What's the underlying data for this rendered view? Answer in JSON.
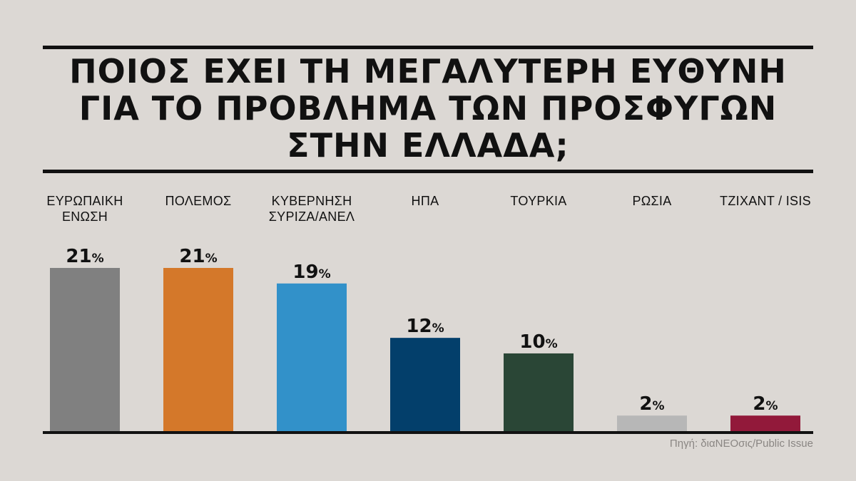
{
  "title": "ΠΟΙΟΣ ΕΧΕΙ ΤΗ ΜΕΓΑΛΥΤΕΡΗ ΕΥΘΥΝΗ\nΓΙΑ ΤΟ ΠΡΟΒΛΗΜΑ ΤΩΝ ΠΡΟΣΦΥΓΩΝ\nΣΤΗΝ ΕΛΛΑΔΑ;",
  "source": "Πηγή: διαΝΕΟσις/Public Issue",
  "chart_data": {
    "type": "bar",
    "title": "ΠΟΙΟΣ ΕΧΕΙ ΤΗ ΜΕΓΑΛΥΤΕΡΗ ΕΥΘΥΝΗ ΓΙΑ ΤΟ ΠΡΟΒΛΗΜΑ ΤΩΝ ΠΡΟΣΦΥΓΩΝ ΣΤΗΝ ΕΛΛΑΔΑ;",
    "xlabel": "",
    "ylabel": "",
    "unit": "%",
    "grid": false,
    "legend": "none",
    "ylim": [
      0,
      21
    ],
    "categories": [
      [
        "ΕΥΡΩΠΑΙΚΗ",
        "ΕΝΩΣΗ"
      ],
      [
        "ΠΟΛΕΜΟΣ"
      ],
      [
        "ΚΥΒΕΡΝΗΣΗ",
        "ΣΥΡΙΖΑ/ΑΝΕΛ"
      ],
      [
        "ΗΠΑ"
      ],
      [
        "ΤΟΥΡΚΙΑ"
      ],
      [
        "ΡΩΣΙΑ"
      ],
      [
        "ΤΖΙΧΑΝΤ / ISIS"
      ]
    ],
    "values": [
      21,
      21,
      19,
      12,
      10,
      2,
      2
    ],
    "colors": [
      "#808080",
      "#d4782a",
      "#3291c9",
      "#033f6b",
      "#2a4636",
      "#b7b7b7",
      "#92193a"
    ]
  }
}
